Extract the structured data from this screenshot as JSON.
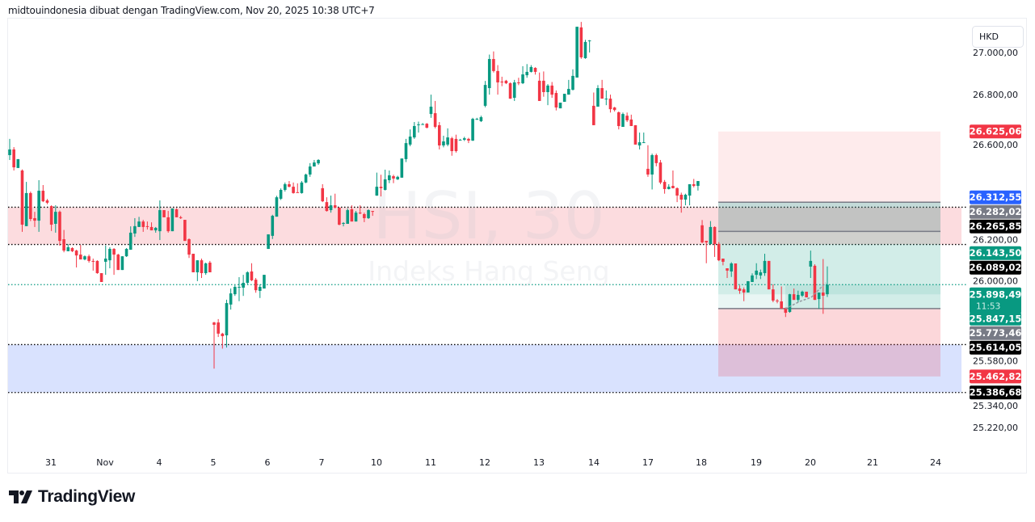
{
  "header": {
    "caption": "midtouindonesia dibuat dengan TradingView.com, Nov 20, 2025 10:38 UTC+7"
  },
  "currency": "HKD",
  "watermark": {
    "symbol": "HSI, 30",
    "name": "Indeks Hang Seng"
  },
  "brand": "TradingView",
  "countdown": "11:53",
  "colors": {
    "up": "#089981",
    "down": "#f23645",
    "zone_resistance": "#fcdcdf",
    "zone_support": "#d9e2fe",
    "blue": "#2962ff",
    "grey": "#787b86",
    "black": "#000000"
  },
  "chart_data": {
    "type": "candlestick",
    "title": "",
    "timeframe_minutes": 30,
    "ylim": [
      25150,
      27180
    ],
    "y_ticks": [
      "27.000,00",
      "26.800,00",
      "26.600,00",
      "26.200,00",
      "26.000,00",
      "25.580,00",
      "25.340,00",
      "25.220,00"
    ],
    "y_tick_values": [
      27000,
      26800,
      26600,
      26200,
      26000,
      25580,
      25340,
      25220
    ],
    "x_ticks": [
      "31",
      "Nov",
      "4",
      "5",
      "6",
      "7",
      "10",
      "11",
      "12",
      "13",
      "14",
      "17",
      "18",
      "19",
      "20",
      "21",
      "24"
    ],
    "ohlc": [
      [
        26513,
        26590,
        26490,
        26540
      ],
      [
        26540,
        26551,
        26440,
        26455
      ],
      [
        26452,
        26494,
        26452,
        26494
      ],
      [
        26440,
        26445,
        26149,
        26183
      ],
      [
        26176,
        26386,
        26176,
        26333
      ],
      [
        26333,
        26340,
        26200,
        26210
      ],
      [
        26214,
        26244,
        26172,
        26202
      ],
      [
        26202,
        26394,
        26149,
        26344
      ],
      [
        26344,
        26371,
        26290,
        26294
      ],
      [
        26298,
        26305,
        26280,
        26287
      ],
      [
        26271,
        26275,
        26153,
        26183
      ],
      [
        26187,
        26275,
        26145,
        26244
      ],
      [
        26244,
        26250,
        26083,
        26106
      ],
      [
        26114,
        26158,
        26052,
        26060
      ],
      [
        26057,
        26091,
        26057,
        26076
      ],
      [
        26072,
        26076,
        26053,
        26057
      ],
      [
        26060,
        26064,
        25980,
        26037
      ],
      [
        26041,
        26087,
        26018,
        26018
      ],
      [
        26018,
        26037,
        26014,
        26033
      ],
      [
        26033,
        26041,
        26003,
        26011
      ],
      [
        26011,
        26022,
        25965,
        26007
      ],
      [
        26011,
        26014,
        25950,
        25953
      ],
      [
        25953,
        25953,
        25911,
        25911
      ],
      [
        26007,
        26084,
        25945,
        26022
      ],
      [
        26014,
        26076,
        25976,
        26068
      ],
      [
        26068,
        26072,
        25945,
        26041
      ],
      [
        26041,
        26045,
        25968,
        25968
      ],
      [
        25968,
        26033,
        25968,
        26033
      ],
      [
        26033,
        26072,
        26030,
        26068
      ],
      [
        26064,
        26175,
        26064,
        26145
      ],
      [
        26141,
        26214,
        26125,
        26176
      ],
      [
        26172,
        26220,
        26172,
        26198
      ],
      [
        26198,
        26206,
        26149,
        26172
      ],
      [
        26176,
        26198,
        26160,
        26172
      ],
      [
        26172,
        26194,
        26156,
        26156
      ],
      [
        26156,
        26172,
        26145,
        26168
      ],
      [
        26152,
        26298,
        26110,
        26252
      ],
      [
        26252,
        26252,
        26218,
        26218
      ],
      [
        26218,
        26248,
        26145,
        26152
      ],
      [
        26152,
        26260,
        26152,
        26260
      ],
      [
        26256,
        26260,
        26218,
        26218
      ],
      [
        26218,
        26225,
        26210,
        26214
      ],
      [
        26206,
        26206,
        26106,
        26106
      ],
      [
        26114,
        26118,
        26025,
        26041
      ],
      [
        26045,
        26045,
        25957,
        25957
      ],
      [
        25957,
        26014,
        25915,
        26014
      ],
      [
        26014,
        26022,
        25930,
        25953
      ],
      [
        25953,
        26003,
        25945,
        25999
      ],
      [
        26003,
        26011,
        25957,
        25957
      ],
      [
        25719,
        25722,
        25500,
        25708
      ],
      [
        25719,
        25735,
        25650,
        25666
      ],
      [
        25666,
        25670,
        25595,
        25654
      ],
      [
        25658,
        25827,
        25600,
        25811
      ],
      [
        25804,
        25880,
        25780,
        25857
      ],
      [
        25853,
        25900,
        25845,
        25888
      ],
      [
        25888,
        25934,
        25820,
        25888
      ],
      [
        25884,
        25945,
        25845,
        25907
      ],
      [
        25907,
        25962,
        25900,
        25957
      ],
      [
        25961,
        26000,
        25915,
        25919
      ],
      [
        25922,
        25930,
        25860,
        25872
      ],
      [
        25869,
        25900,
        25835,
        25888
      ],
      [
        25880,
        25945,
        25880,
        25945
      ],
      [
        26068,
        26137,
        26068,
        26137
      ],
      [
        26130,
        26230,
        26115,
        26225
      ],
      [
        26221,
        26320,
        26221,
        26313
      ],
      [
        26306,
        26355,
        26300,
        26348
      ],
      [
        26348,
        26383,
        26340,
        26375
      ],
      [
        26375,
        26390,
        26360,
        26363
      ],
      [
        26363,
        26383,
        26330,
        26333
      ],
      [
        26337,
        26379,
        26335,
        26335
      ],
      [
        26333,
        26390,
        26330,
        26383
      ],
      [
        26383,
        26425,
        26380,
        26421
      ],
      [
        26421,
        26475,
        26410,
        26459
      ],
      [
        26459,
        26490,
        26459,
        26478
      ],
      [
        26474,
        26494,
        26467,
        26490
      ],
      [
        26356,
        26375,
        26290,
        26294
      ],
      [
        26290,
        26313,
        26245,
        26248
      ],
      [
        26252,
        26321,
        26240,
        26275
      ],
      [
        26275,
        26330,
        26260,
        26264
      ],
      [
        26264,
        26264,
        26180,
        26183
      ],
      [
        26187,
        26195,
        26175,
        26191
      ],
      [
        26187,
        26260,
        26187,
        26252
      ],
      [
        26256,
        26275,
        26198,
        26198
      ],
      [
        26198,
        26248,
        26198,
        26240
      ],
      [
        26240,
        26275,
        26233,
        26237
      ],
      [
        26233,
        26240,
        26195,
        26214
      ],
      [
        26214,
        26256,
        26210,
        26252
      ],
      [
        26248,
        26248,
        26225,
        26244
      ],
      [
        26321,
        26430,
        26320,
        26363
      ],
      [
        26363,
        26420,
        26317,
        26356
      ],
      [
        26348,
        26444,
        26345,
        26398
      ],
      [
        26394,
        26440,
        26380,
        26417
      ],
      [
        26413,
        26420,
        26380,
        26402
      ],
      [
        26398,
        26415,
        26395,
        26410
      ],
      [
        26406,
        26497,
        26406,
        26497
      ],
      [
        26494,
        26590,
        26480,
        26570
      ],
      [
        26563,
        26635,
        26555,
        26601
      ],
      [
        26597,
        26670,
        26590,
        26651
      ],
      [
        26659,
        26672,
        26620,
        26659
      ],
      [
        26659,
        26665,
        26657,
        26660
      ],
      [
        26662,
        26665,
        26640,
        26643
      ],
      [
        26708,
        26800,
        26690,
        26743
      ],
      [
        26712,
        26770,
        26640,
        26647
      ],
      [
        26655,
        26670,
        26540,
        26559
      ],
      [
        26559,
        26605,
        26550,
        26578
      ],
      [
        26563,
        26640,
        26555,
        26597
      ],
      [
        26593,
        26600,
        26510,
        26532
      ],
      [
        26590,
        26610,
        26525,
        26532
      ],
      [
        26586,
        26590,
        26586,
        26586
      ],
      [
        26586,
        26600,
        26580,
        26593
      ],
      [
        26590,
        26595,
        26570,
        26582
      ],
      [
        26582,
        26690,
        26580,
        26685
      ],
      [
        26685,
        26690,
        26680,
        26685
      ],
      [
        26674,
        26700,
        26670,
        26693
      ],
      [
        26747,
        26865,
        26740,
        26846
      ],
      [
        26831,
        26990,
        26800,
        26969
      ],
      [
        26969,
        27005,
        26905,
        26912
      ],
      [
        26912,
        26940,
        26800,
        26858
      ],
      [
        26862,
        26885,
        26840,
        26858
      ],
      [
        26866,
        26870,
        26850,
        26854
      ],
      [
        26854,
        26858,
        26780,
        26781
      ],
      [
        26785,
        26870,
        26770,
        26858
      ],
      [
        26858,
        26880,
        26845,
        26854
      ],
      [
        26854,
        26935,
        26850,
        26896
      ],
      [
        26892,
        26945,
        26880,
        26908
      ],
      [
        26908,
        26940,
        26905,
        26931
      ],
      [
        26927,
        26930,
        26895,
        26908
      ],
      [
        26866,
        26905,
        26770,
        26770
      ],
      [
        26866,
        26910,
        26790,
        26812
      ],
      [
        26812,
        26850,
        26750,
        26843
      ],
      [
        26843,
        26860,
        26785,
        26800
      ],
      [
        26808,
        26820,
        26725,
        26739
      ],
      [
        26735,
        26762,
        26735,
        26762
      ],
      [
        26766,
        26804,
        26766,
        26804
      ],
      [
        26800,
        26870,
        26800,
        26827
      ],
      [
        26823,
        26920,
        26820,
        26889
      ],
      [
        26881,
        27122,
        26881,
        27122
      ],
      [
        27119,
        27145,
        26970,
        26977
      ],
      [
        26973,
        27060,
        26970,
        27050
      ],
      [
        27057,
        27059,
        27000,
        27057
      ],
      [
        26747,
        26810,
        26655,
        26655
      ],
      [
        26743,
        26845,
        26743,
        26831
      ],
      [
        26831,
        26870,
        26781,
        26781
      ],
      [
        26781,
        26820,
        26750,
        26781
      ],
      [
        26781,
        26800,
        26715,
        26731
      ],
      [
        26739,
        26742,
        26720,
        26727
      ],
      [
        26716,
        26720,
        26635,
        26651
      ],
      [
        26647,
        26715,
        26647,
        26708
      ],
      [
        26700,
        26715,
        26670,
        26678
      ],
      [
        26682,
        26705,
        26651,
        26651
      ],
      [
        26655,
        26655,
        26563,
        26563
      ],
      [
        26559,
        26620,
        26540,
        26574
      ],
      [
        26574,
        26620,
        26574,
        26574
      ],
      [
        26448,
        26560,
        26410,
        26421
      ],
      [
        26421,
        26520,
        26350,
        26513
      ],
      [
        26513,
        26520,
        26460,
        26475
      ],
      [
        26478,
        26490,
        26375,
        26383
      ],
      [
        26386,
        26395,
        26330,
        26352
      ],
      [
        26352,
        26375,
        26350,
        26363
      ],
      [
        26367,
        26440,
        26355,
        26356
      ],
      [
        26356,
        26360,
        26290,
        26321
      ],
      [
        26325,
        26335,
        26240,
        26302
      ],
      [
        26302,
        26330,
        26275,
        26325
      ],
      [
        26321,
        26375,
        26275,
        26375
      ],
      [
        26375,
        26400,
        26360,
        26367
      ],
      [
        26367,
        26390,
        26345,
        26390
      ],
      [
        26180,
        26205,
        26095,
        26099
      ],
      [
        26106,
        26106,
        26000,
        26099
      ],
      [
        26091,
        26200,
        26090,
        26172
      ],
      [
        26172,
        26175,
        26030,
        26091
      ],
      [
        26091,
        26100,
        26010,
        26014
      ],
      [
        26022,
        26022,
        25990,
        26007
      ],
      [
        25976,
        25976,
        25930,
        25965
      ],
      [
        25961,
        26005,
        25935,
        25999
      ],
      [
        25999,
        25999,
        25876,
        25876
      ],
      [
        25880,
        25895,
        25855,
        25869
      ],
      [
        25876,
        25885,
        25820,
        25861
      ],
      [
        25861,
        25915,
        25861,
        25915
      ],
      [
        25911,
        25952,
        25930,
        25942
      ],
      [
        25945,
        26000,
        25925,
        25965
      ],
      [
        25942,
        25970,
        25925,
        25957
      ],
      [
        25953,
        26045,
        25940,
        26011
      ],
      [
        26011,
        26011,
        25876,
        25876
      ],
      [
        25876,
        25900,
        25815,
        25823
      ],
      [
        25823,
        25830,
        25810,
        25820
      ],
      [
        25819,
        25890,
        25785,
        25785
      ],
      [
        25788,
        25790,
        25745,
        25765
      ],
      [
        25769,
        25855,
        25765,
        25853
      ],
      [
        25853,
        25880,
        25826,
        25826
      ],
      [
        25826,
        25870,
        25815,
        25850
      ],
      [
        25846,
        25870,
        25840,
        25865
      ],
      [
        25865,
        25865,
        25838,
        25838
      ],
      [
        25984,
        26060,
        25930,
        26011
      ],
      [
        25988,
        25995,
        25826,
        25826
      ],
      [
        25830,
        25860,
        25784,
        25861
      ],
      [
        25861,
        26020,
        25760,
        25846
      ],
      [
        25853,
        25985,
        25840,
        25898
      ]
    ],
    "zones": [
      {
        "kind": "resistance",
        "top": 26265.85,
        "bottom": 26089.02
      },
      {
        "kind": "support",
        "top": 25614.05,
        "bottom": 25386.68
      }
    ],
    "last_price_line": 25898.49,
    "position_tool": {
      "target_top": 26625.06,
      "target_line": 26312.55,
      "mid_line": 26143.5,
      "entry": 25773.46,
      "stop": 25462.82
    },
    "price_labels": [
      {
        "value": 26625.06,
        "text": "26.625,06",
        "color": "#f23645"
      },
      {
        "value": 26312.55,
        "text": "26.312,55",
        "color": "#2962ff"
      },
      {
        "value": 26282.02,
        "text": "26.282,02",
        "color": "#787b86"
      },
      {
        "value": 26265.85,
        "text": "26.265,85",
        "color": "#000000"
      },
      {
        "value": 26143.5,
        "text": "26.143,50",
        "color": "#089981"
      },
      {
        "value": 26089.02,
        "text": "26.089,02",
        "color": "#000000"
      },
      {
        "value": 25773.46,
        "text": "25.773,46",
        "color": "#787b86"
      },
      {
        "value": 25614.05,
        "text": "25.614,05",
        "color": "#000000"
      },
      {
        "value": 25462.82,
        "text": "25.462,82",
        "color": "#f23645"
      },
      {
        "value": 25386.68,
        "text": "25.386,68",
        "color": "#000000"
      }
    ],
    "last_price_label": {
      "price": "25.898,49",
      "countdown": "11:53",
      "prev": "25.847,15"
    }
  }
}
